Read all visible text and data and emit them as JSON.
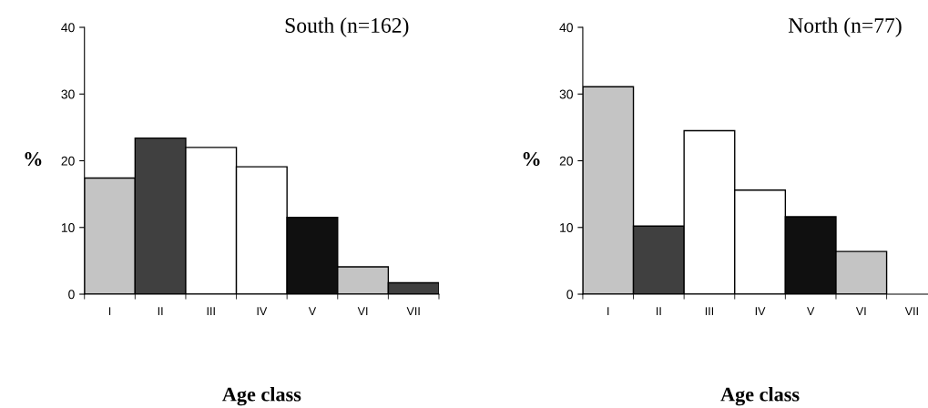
{
  "chart_data": [
    {
      "type": "bar",
      "title": "South (n=162)",
      "xlabel": "Age class",
      "ylabel": "%",
      "categories": [
        "I",
        "II",
        "III",
        "IV",
        "V",
        "VI",
        "VII"
      ],
      "values": [
        17.4,
        23.4,
        22.0,
        19.1,
        11.5,
        4.1,
        1.7
      ],
      "colors": [
        "#c4c4c4",
        "#404040",
        "#ffffff",
        "#ffffff",
        "#101010",
        "#c4c4c4",
        "#404040"
      ],
      "ylim": [
        0,
        40
      ],
      "yticks": [
        0,
        10,
        20,
        30,
        40
      ],
      "grid": false
    },
    {
      "type": "bar",
      "title": "North (n=77)",
      "xlabel": "Age class",
      "ylabel": "%",
      "categories": [
        "I",
        "II",
        "III",
        "IV",
        "V",
        "VI",
        "VII"
      ],
      "values": [
        31.1,
        10.2,
        24.5,
        15.6,
        11.6,
        6.4,
        null
      ],
      "colors": [
        "#c4c4c4",
        "#404040",
        "#ffffff",
        "#ffffff",
        "#101010",
        "#c4c4c4",
        null
      ],
      "ylim": [
        0,
        40
      ],
      "yticks": [
        0,
        10,
        20,
        30,
        40
      ],
      "grid": false
    }
  ]
}
